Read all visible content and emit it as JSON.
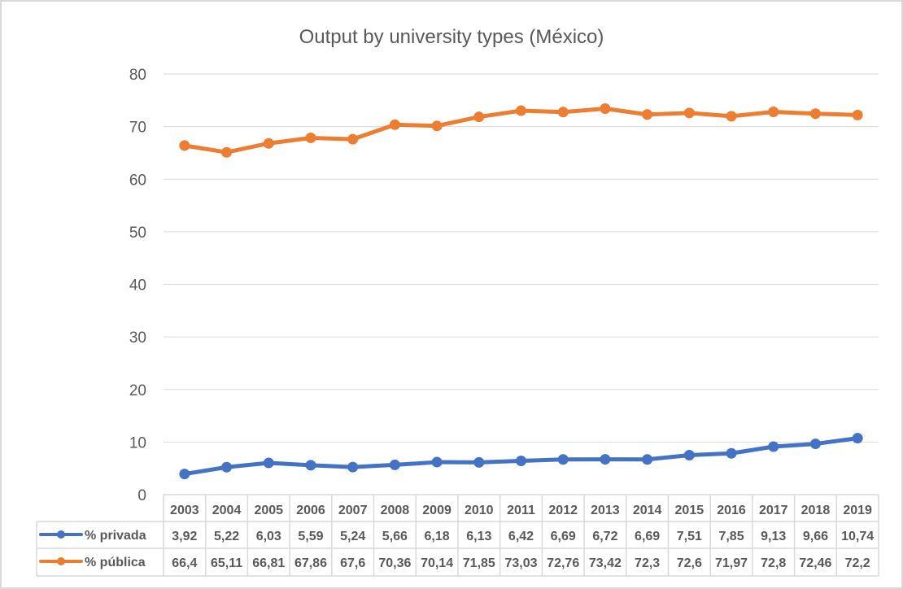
{
  "chart_data": {
    "type": "line",
    "title": "Output by university types (México)",
    "categories": [
      "2003",
      "2004",
      "2005",
      "2006",
      "2007",
      "2008",
      "2009",
      "2010",
      "2011",
      "2012",
      "2013",
      "2014",
      "2015",
      "2016",
      "2017",
      "2018",
      "2019"
    ],
    "series": [
      {
        "name": "% privada",
        "color": "#4472C4",
        "values": [
          3.92,
          5.22,
          6.03,
          5.59,
          5.24,
          5.66,
          6.18,
          6.13,
          6.42,
          6.69,
          6.72,
          6.69,
          7.51,
          7.85,
          9.13,
          9.66,
          10.74
        ],
        "labels": [
          "3,92",
          "5,22",
          "6,03",
          "5,59",
          "5,24",
          "5,66",
          "6,18",
          "6,13",
          "6,42",
          "6,69",
          "6,72",
          "6,69",
          "7,51",
          "7,85",
          "9,13",
          "9,66",
          "10,74"
        ]
      },
      {
        "name": "% pública",
        "color": "#ED7D31",
        "values": [
          66.4,
          65.11,
          66.81,
          67.86,
          67.6,
          70.36,
          70.14,
          71.85,
          73.03,
          72.76,
          73.42,
          72.3,
          72.6,
          71.97,
          72.8,
          72.46,
          72.2
        ],
        "labels": [
          "66,4",
          "65,11",
          "66,81",
          "67,86",
          "67,6",
          "70,36",
          "70,14",
          "71,85",
          "73,03",
          "72,76",
          "73,42",
          "72,3",
          "72,6",
          "71,97",
          "72,8",
          "72,46",
          "72,2"
        ]
      }
    ],
    "ylim": [
      0,
      80
    ],
    "yticks": [
      "0",
      "10",
      "20",
      "30",
      "40",
      "50",
      "60",
      "70",
      "80"
    ],
    "grid": true,
    "legend": "data-table"
  }
}
